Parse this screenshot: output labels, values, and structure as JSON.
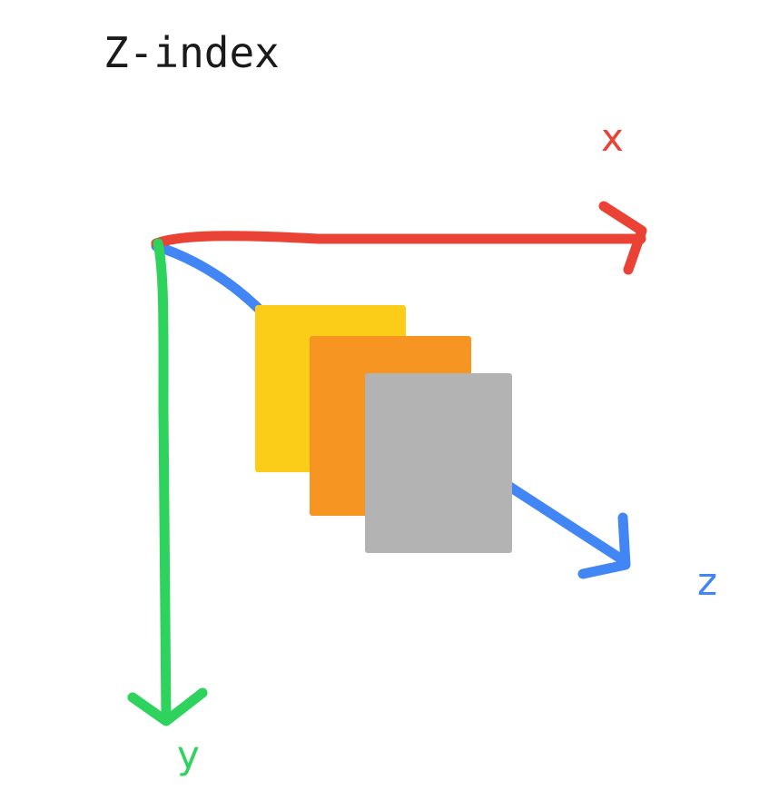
{
  "title": "Z-index",
  "axes": {
    "x": {
      "label": "x",
      "color": "#EA4335"
    },
    "y": {
      "label": "y",
      "color": "#2DD35C"
    },
    "z": {
      "label": "z",
      "color": "#4285F4"
    }
  },
  "layers": [
    {
      "color": "#FCCD18"
    },
    {
      "color": "#F69521"
    },
    {
      "color": "#B3B3B3"
    }
  ]
}
